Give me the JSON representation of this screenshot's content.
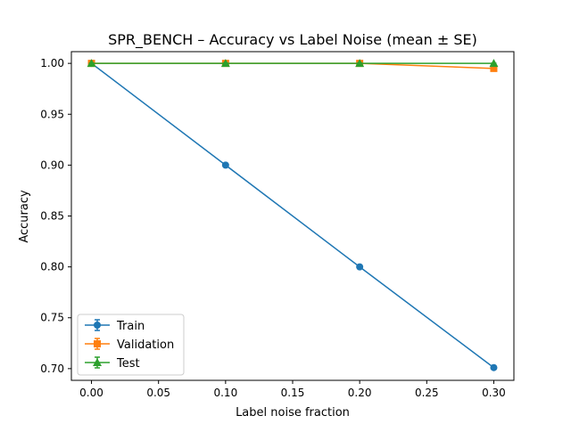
{
  "chart_data": {
    "type": "line",
    "title": "SPR_BENCH – Accuracy vs Label Noise (mean ± SE)",
    "xlabel": "Label noise fraction",
    "ylabel": "Accuracy",
    "xlim": [
      -0.015,
      0.315
    ],
    "ylim": [
      0.6885,
      1.0115
    ],
    "x_ticks": [
      0.0,
      0.05,
      0.1,
      0.15,
      0.2,
      0.25,
      0.3
    ],
    "x_tick_labels": [
      "0.00",
      "0.05",
      "0.10",
      "0.15",
      "0.20",
      "0.25",
      "0.30"
    ],
    "y_ticks": [
      0.7,
      0.75,
      0.8,
      0.85,
      0.9,
      0.95,
      1.0
    ],
    "y_tick_labels": [
      "0.70",
      "0.75",
      "0.80",
      "0.85",
      "0.90",
      "0.95",
      "1.00"
    ],
    "grid": false,
    "legend_position": "lower-left",
    "x": [
      0.0,
      0.1,
      0.2,
      0.3
    ],
    "series": [
      {
        "name": "Train",
        "values": [
          1.0,
          0.9,
          0.8,
          0.701
        ],
        "error": [
          0.001,
          0.001,
          0.001,
          0.001
        ],
        "color": "#1f77b4",
        "marker": "circle"
      },
      {
        "name": "Validation",
        "values": [
          1.0,
          1.0,
          1.0,
          0.995
        ],
        "error": [
          0.0,
          0.0,
          0.0,
          0.001
        ],
        "color": "#ff7f0e",
        "marker": "square"
      },
      {
        "name": "Test",
        "values": [
          1.0,
          1.0,
          1.0,
          1.0
        ],
        "error": [
          0.0,
          0.0,
          0.0,
          0.0
        ],
        "color": "#2ca02c",
        "marker": "triangle"
      }
    ]
  }
}
